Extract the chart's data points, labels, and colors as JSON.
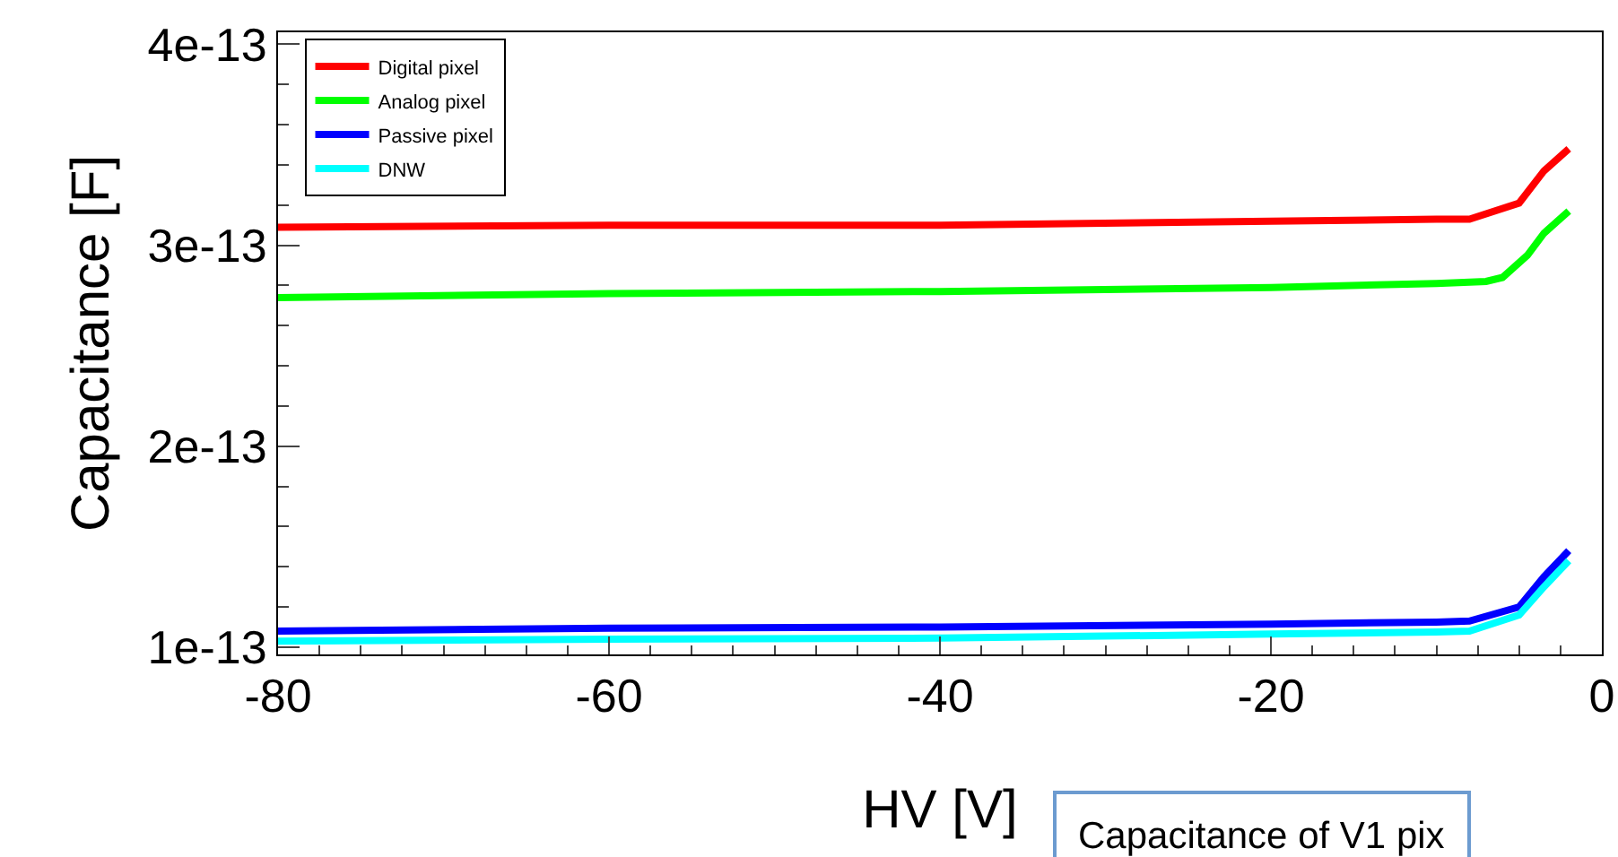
{
  "chart_data": {
    "type": "line",
    "xlabel": "HV [V]",
    "ylabel": "Capacitance [F]",
    "xlim": [
      -80,
      0
    ],
    "xticks": [
      -80,
      -60,
      -40,
      -20,
      0
    ],
    "ylim": [
      9.64e-14,
      4.06e-13
    ],
    "yticks": [
      1e-13,
      2e-13,
      3e-13,
      4e-13
    ],
    "grid": false,
    "legend": "top left",
    "marker": "none",
    "line_style": "solid",
    "annotations": [
      "Capacitance of V1 pix"
    ],
    "series": [
      {
        "name": "Digital pixel",
        "color": "#ff0000",
        "x": [
          -80,
          -60,
          -40,
          -20,
          -10,
          -8,
          -5,
          -3.5,
          -2
        ],
        "values": [
          3.09e-13,
          3.1e-13,
          3.1e-13,
          3.12e-13,
          3.13e-13,
          3.13e-13,
          3.21e-13,
          3.37e-13,
          3.48e-13
        ]
      },
      {
        "name": "Analog pixel",
        "color": "#00ff00",
        "x": [
          -80,
          -60,
          -40,
          -20,
          -10,
          -7,
          -6,
          -4.5,
          -3.5,
          -2
        ],
        "values": [
          2.74e-13,
          2.76e-13,
          2.77e-13,
          2.79e-13,
          2.81e-13,
          2.82e-13,
          2.84e-13,
          2.95e-13,
          3.06e-13,
          3.17e-13
        ]
      },
      {
        "name": "Passive pixel",
        "color": "#0000ff",
        "x": [
          -80,
          -60,
          -40,
          -20,
          -10,
          -8,
          -5,
          -3.5,
          -2
        ],
        "values": [
          1.08e-13,
          1.095e-13,
          1.1e-13,
          1.115e-13,
          1.125e-13,
          1.13e-13,
          1.2e-13,
          1.35e-13,
          1.48e-13
        ]
      },
      {
        "name": "DNW",
        "color": "#00ffff",
        "x": [
          -80,
          -60,
          -40,
          -20,
          -10,
          -8,
          -5,
          -3.5,
          -2
        ],
        "values": [
          1.03e-13,
          1.04e-13,
          1.045e-13,
          1.065e-13,
          1.075e-13,
          1.08e-13,
          1.16e-13,
          1.3e-13,
          1.43e-13
        ]
      }
    ]
  }
}
